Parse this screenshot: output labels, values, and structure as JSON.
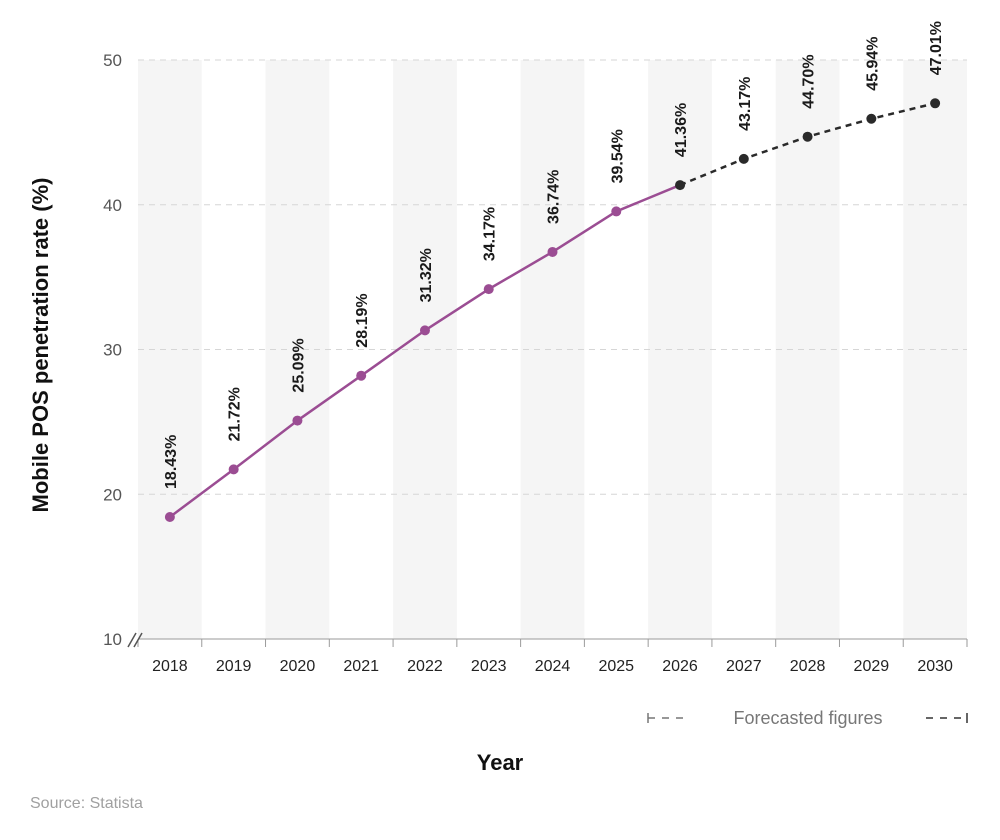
{
  "chart_data": {
    "type": "line",
    "title": "",
    "xlabel": "Year",
    "ylabel": "Mobile POS penetration rate (%)",
    "ylim": [
      10,
      50
    ],
    "yticks": [
      10,
      20,
      30,
      40,
      50
    ],
    "grid": "horizontal dashed, alternating vertical bands",
    "categories": [
      "2018",
      "2019",
      "2020",
      "2021",
      "2022",
      "2023",
      "2024",
      "2025",
      "2026",
      "2027",
      "2028",
      "2029",
      "2030"
    ],
    "series": [
      {
        "values": [
          18.43,
          21.72,
          25.09,
          28.19,
          31.32,
          34.17,
          36.74,
          39.54,
          41.36,
          43.17,
          44.7,
          45.94,
          47.01
        ],
        "data_labels": [
          "18.43%",
          "21.72%",
          "25.09%",
          "28.19%",
          "31.32%",
          "34.17%",
          "36.74%",
          "39.54%",
          "41.36%",
          "43.17%",
          "44.70%",
          "45.94%",
          "47.01%"
        ],
        "actual_until": "2026",
        "color_actual": "#9b4d93",
        "color_forecast": "#2a2a2a"
      }
    ],
    "legend": {
      "label": "Forecasted figures",
      "placement": "bottom-right"
    },
    "source": "Source: Statista"
  }
}
